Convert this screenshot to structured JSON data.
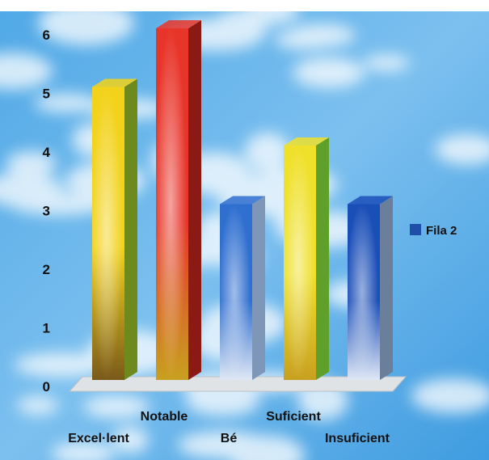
{
  "chart_data": {
    "type": "bar",
    "categories": [
      "Excel·lent",
      "Notable",
      "Bé",
      "Suficient",
      "Insuficient"
    ],
    "series": [
      {
        "name": "Fila 2",
        "values": [
          5,
          6,
          3,
          4,
          3
        ]
      }
    ],
    "bar_colors": [
      "#f2d21a",
      "#e8352a",
      "#2f6fd0",
      "#efe02a",
      "#1b4fb8"
    ],
    "bar_side_colors": [
      "#6e8a1c",
      "#8c1a14",
      "#7e96b8",
      "#5fa02a",
      "#6b7f9a"
    ],
    "yticks": [
      0,
      1,
      2,
      3,
      4,
      5,
      6
    ],
    "ylim": [
      0,
      6
    ],
    "legend_position": "right",
    "legend_color": "#1f4fa8",
    "background": "sky-clouds"
  }
}
